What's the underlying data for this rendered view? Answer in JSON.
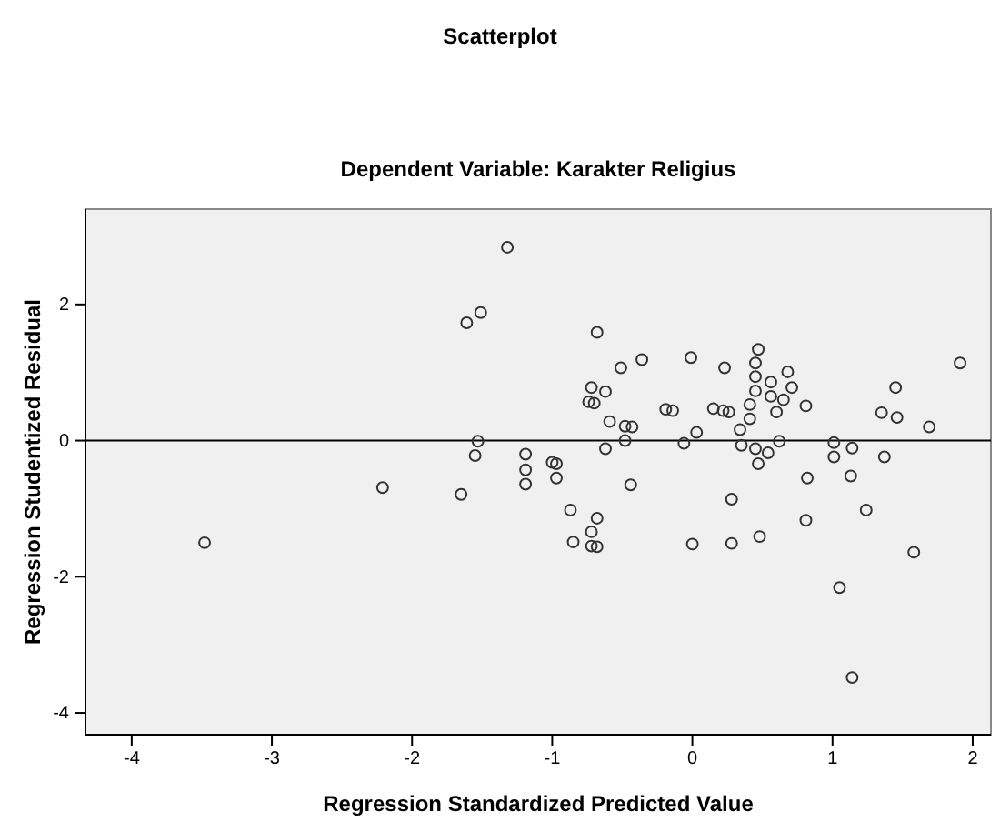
{
  "chart_data": {
    "type": "scatter",
    "title": "Scatterplot",
    "subtitle": "Dependent Variable: Karakter Religius",
    "xlabel": "Regression Standardized Predicted Value",
    "ylabel": "Regression Studentized Residual",
    "xlim": [
      -4.33,
      2.13
    ],
    "ylim": [
      -4.32,
      3.4
    ],
    "xticks": [
      -4,
      -3,
      -2,
      -1,
      0,
      1,
      2
    ],
    "yticks": [
      -4,
      -2,
      0,
      2
    ],
    "marker": "circle",
    "grid": false,
    "ref_lines": [
      {
        "axis": "y",
        "value": 0,
        "label": null,
        "color": "#000000"
      }
    ],
    "series": [
      {
        "color": "#333333",
        "x": [
          -1.32,
          -1.51,
          -1.61,
          -1.53,
          -1.55,
          -2.21,
          -1.65,
          -3.48,
          -1.19,
          -1.19,
          -1.19,
          -1.0,
          -0.97,
          -0.97,
          -0.87,
          -0.85,
          -0.72,
          -0.74,
          -0.7,
          -0.62,
          -0.68,
          -0.72,
          -0.68,
          -0.72,
          -0.68,
          -0.59,
          -0.62,
          -0.51,
          -0.48,
          -0.43,
          -0.48,
          -0.44,
          -0.36,
          -0.19,
          -0.14,
          -0.06,
          0.03,
          -0.01,
          0.0,
          0.15,
          0.22,
          0.26,
          0.23,
          0.28,
          0.28,
          0.34,
          0.35,
          0.41,
          0.41,
          0.45,
          0.45,
          0.45,
          0.47,
          0.45,
          0.47,
          0.54,
          0.48,
          0.56,
          0.56,
          0.6,
          0.62,
          0.65,
          0.68,
          0.71,
          0.81,
          0.82,
          0.81,
          1.01,
          1.01,
          1.14,
          1.13,
          1.05,
          1.14,
          1.24,
          1.35,
          1.37,
          1.45,
          1.46,
          1.58,
          1.69,
          1.91
        ],
        "values": [
          2.84,
          1.88,
          1.73,
          -0.01,
          -0.22,
          -0.69,
          -0.79,
          -1.5,
          -0.2,
          -0.43,
          -0.64,
          -0.32,
          -0.34,
          -0.55,
          -1.02,
          -1.49,
          0.78,
          0.57,
          0.55,
          0.72,
          1.59,
          -1.34,
          -1.14,
          -1.55,
          -1.56,
          0.28,
          -0.12,
          1.07,
          0.21,
          0.2,
          0.0,
          -0.65,
          1.19,
          0.46,
          0.44,
          -0.04,
          0.12,
          1.22,
          -1.52,
          0.47,
          0.44,
          0.42,
          1.07,
          -0.86,
          -1.51,
          0.16,
          -0.07,
          0.32,
          0.53,
          0.73,
          0.94,
          1.14,
          1.34,
          -0.12,
          -0.34,
          -0.18,
          -1.41,
          0.86,
          0.65,
          0.42,
          -0.01,
          0.6,
          1.01,
          0.78,
          0.51,
          -0.55,
          -1.17,
          -0.03,
          -0.24,
          -0.11,
          -0.52,
          -2.16,
          -3.48,
          -1.02,
          0.41,
          -0.24,
          0.78,
          0.34,
          -1.64,
          0.2,
          1.14
        ]
      }
    ]
  }
}
